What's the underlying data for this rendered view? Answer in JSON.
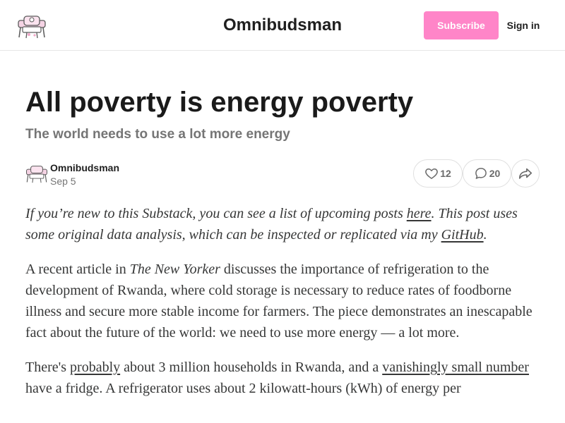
{
  "header": {
    "publication_name": "Omnibudsman",
    "subscribe_label": "Subscribe",
    "sign_in_label": "Sign in",
    "logo_icon": "pink-chair-logo-icon"
  },
  "post": {
    "title": "All poverty is energy poverty",
    "subtitle": "The world needs to use a lot more energy",
    "author": "Omnibudsman",
    "date": "Sep 5",
    "like_count": "12",
    "comment_count": "20",
    "icons": {
      "like": "heart-icon",
      "comment": "comment-bubble-icon",
      "share": "share-arrow-icon"
    }
  },
  "body": {
    "p1": {
      "t1": "If you’re new to this Substack, you can see a list of upcoming posts ",
      "link1": "here",
      "t2": ". This post uses some original data analysis, which can be inspected or replicated via my ",
      "link2": "GitHub",
      "t3": "."
    },
    "p2": {
      "t1": "A recent article in ",
      "em": "The New Yorker",
      "t2": " discusses the importance of refrigeration to the development of Rwanda, where cold storage is necessary to reduce rates of foodborne illness and secure more stable income for farmers. The piece demonstrates an inescapable fact about the future of the world: we need to use more energy — a lot more."
    },
    "p3": {
      "t1": "There's ",
      "link1": "probably",
      "t2": " about 3 million households in Rwanda, and a ",
      "link2": "vanishingly small number",
      "t3": " have a fridge. A refrigerator uses about 2 kilowatt-hours (kWh) of energy per"
    }
  },
  "colors": {
    "accent": "#ff85c8",
    "text": "#363737",
    "muted": "#757575",
    "border": "#e6e6e6"
  }
}
